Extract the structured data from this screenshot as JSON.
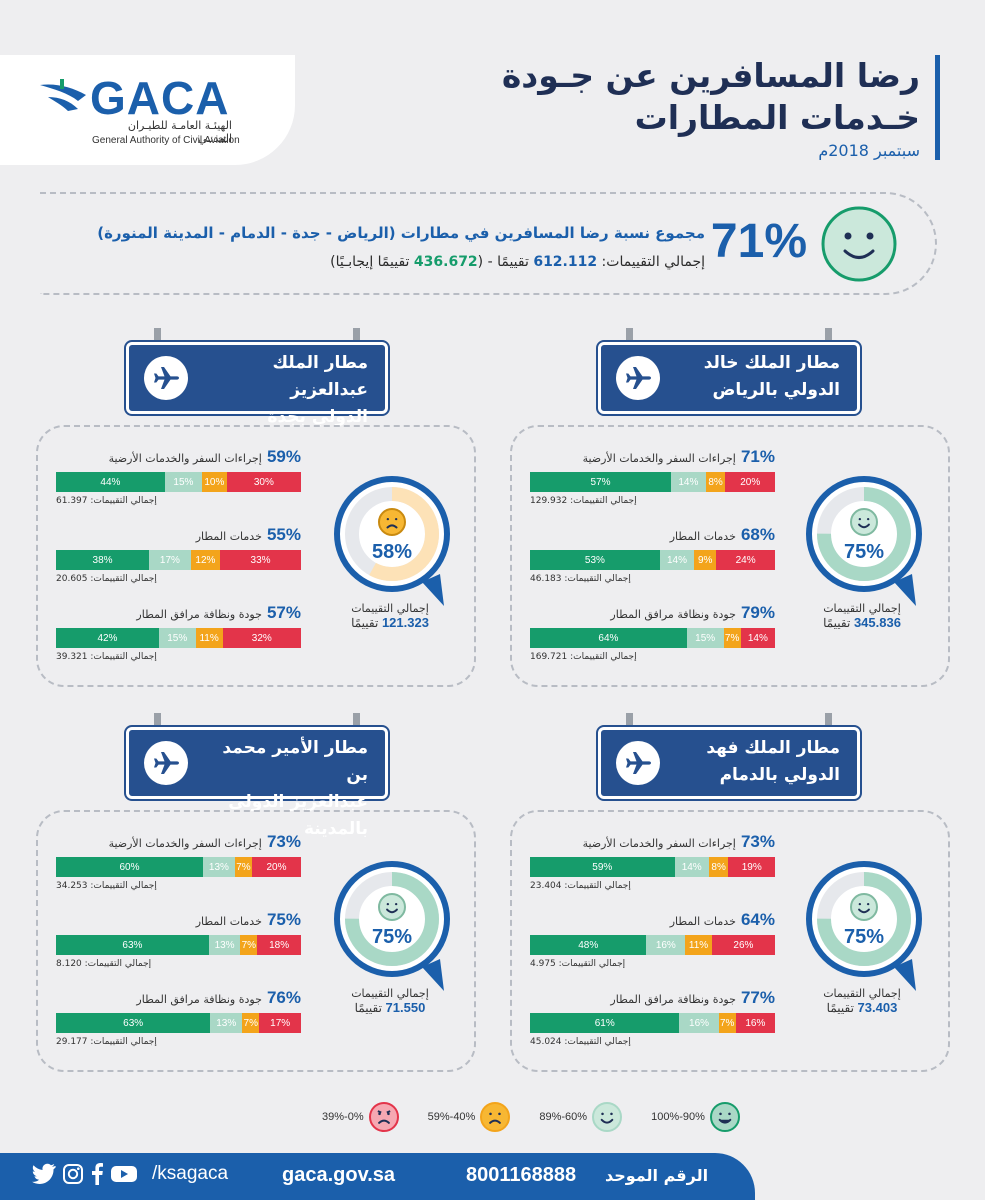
{
  "header": {
    "brand": "GACA",
    "brand_ar": "الهيئـة العامـة للطيـران المدنـي",
    "brand_en": "General Authority of Civil Aviation",
    "title_line1": "رضا المسافرين عن جـودة",
    "title_line2": "خـدمات المطارات",
    "date": "سبتمبر 2018م"
  },
  "summary": {
    "percent": "71%",
    "line1": "مجموع نسبة رضا المسافرين في مطارات (الرياض - جدة - الدمام - المدينة المنورة)",
    "line2_prefix": "إجمالي التقييمات: ",
    "total": "612.112",
    "mid": " تقييمًا - (",
    "positive": "436.672",
    "suffix": " تقييمًا إيجابـيًا)"
  },
  "airports": [
    {
      "name_line1": "مطار الملك خالد",
      "name_line2": "الدولي بالرياض",
      "score": "75%",
      "score_value": 75,
      "face": "happy",
      "ring_color": "#a9d8c6",
      "total_label": "إجمالي التقييمات",
      "total": "345.836",
      "total_unit": "تقييمًا",
      "metrics": [
        {
          "pct": "71%",
          "label": "إجراءات السفر والخدمات الأرضية",
          "count": "إجمالي التقييمات: 129.932",
          "segments": [
            57,
            14,
            8,
            20
          ],
          "seg_labels": [
            "57%",
            "14%",
            "8%",
            "20%"
          ]
        },
        {
          "pct": "68%",
          "label": "خدمات المطار",
          "count": "إجمالي التقييمات: 46.183",
          "segments": [
            53,
            14,
            9,
            24
          ],
          "seg_labels": [
            "53%",
            "14%",
            "9%",
            "24%"
          ]
        },
        {
          "pct": "79%",
          "label": "جودة ونظافة مرافق المطار",
          "count": "إجمالي التقييمات: 169.721",
          "segments": [
            64,
            15,
            7,
            14
          ],
          "seg_labels": [
            "64%",
            "15%",
            "7%",
            "14%"
          ]
        }
      ]
    },
    {
      "name_line1": "مطار الملك عبدالعزيز",
      "name_line2": "الدولي بجدة",
      "score": "58%",
      "score_value": 58,
      "face": "sad",
      "ring_color": "#fde2b7",
      "total_label": "إجمالي التقييمات",
      "total": "121.323",
      "total_unit": "تقييمًا",
      "metrics": [
        {
          "pct": "59%",
          "label": "إجراءات السفر والخدمات الأرضية",
          "count": "إجمالي التقييمات: 61.397",
          "segments": [
            44,
            15,
            10,
            30
          ],
          "seg_labels": [
            "44%",
            "15%",
            "10%",
            "30%"
          ]
        },
        {
          "pct": "55%",
          "label": "خدمات المطار",
          "count": "إجمالي التقييمات: 20.605",
          "segments": [
            38,
            17,
            12,
            33
          ],
          "seg_labels": [
            "38%",
            "17%",
            "12%",
            "33%"
          ]
        },
        {
          "pct": "57%",
          "label": "جودة ونظافة مرافق المطار",
          "count": "إجمالي التقييمات: 39.321",
          "segments": [
            42,
            15,
            11,
            32
          ],
          "seg_labels": [
            "42%",
            "15%",
            "11%",
            "32%"
          ]
        }
      ]
    },
    {
      "name_line1": "مطار الملك فهد",
      "name_line2": "الدولي بالدمام",
      "score": "75%",
      "score_value": 75,
      "face": "happy",
      "ring_color": "#a9d8c6",
      "total_label": "إجمالي التقييمات",
      "total": "73.403",
      "total_unit": "تقييمًا",
      "metrics": [
        {
          "pct": "73%",
          "label": "إجراءات السفر والخدمات الأرضية",
          "count": "إجمالي التقييمات: 23.404",
          "segments": [
            59,
            14,
            8,
            19
          ],
          "seg_labels": [
            "59%",
            "14%",
            "8%",
            "19%"
          ]
        },
        {
          "pct": "64%",
          "label": "خدمات المطار",
          "count": "إجمالي التقييمات: 4.975",
          "segments": [
            48,
            16,
            11,
            26
          ],
          "seg_labels": [
            "48%",
            "16%",
            "11%",
            "26%"
          ]
        },
        {
          "pct": "77%",
          "label": "جودة ونظافة مرافق المطار",
          "count": "إجمالي التقييمات: 45.024",
          "segments": [
            61,
            16,
            7,
            16
          ],
          "seg_labels": [
            "61%",
            "16%",
            "7%",
            "16%"
          ]
        }
      ]
    },
    {
      "name_line1": "مطار الأمير محمد بن",
      "name_line2": "عبدالعزيز الدولي بالمدينة",
      "score": "75%",
      "score_value": 75,
      "face": "happy",
      "ring_color": "#a9d8c6",
      "total_label": "إجمالي التقييمات",
      "total": "71.550",
      "total_unit": "تقييمًا",
      "metrics": [
        {
          "pct": "73%",
          "label": "إجراءات السفر والخدمات الأرضية",
          "count": "إجمالي التقييمات: 34.253",
          "segments": [
            60,
            13,
            7,
            20
          ],
          "seg_labels": [
            "60%",
            "13%",
            "7%",
            "20%"
          ]
        },
        {
          "pct": "75%",
          "label": "خدمات المطار",
          "count": "إجمالي التقييمات: 8.120",
          "segments": [
            63,
            13,
            7,
            18
          ],
          "seg_labels": [
            "63%",
            "13%",
            "7%",
            "18%"
          ]
        },
        {
          "pct": "76%",
          "label": "جودة ونظافة مرافق المطار",
          "count": "إجمالي التقييمات: 29.177",
          "segments": [
            63,
            13,
            7,
            17
          ],
          "seg_labels": [
            "63%",
            "13%",
            "7%",
            "17%"
          ]
        }
      ]
    }
  ],
  "legend": [
    {
      "label": "90%-100%",
      "face": "very-happy",
      "color": "#169c6b"
    },
    {
      "label": "60%-89%",
      "face": "happy",
      "color": "#a9d8c6"
    },
    {
      "label": "40%-59%",
      "face": "sad",
      "color": "#f3a41b"
    },
    {
      "label": "0%-39%",
      "face": "angry",
      "color": "#e3344a"
    }
  ],
  "footer": {
    "handle": "/ksagaca",
    "website": "gaca.gov.sa",
    "phone": "8001168888",
    "phone_label": "الرقم الموحد"
  },
  "colors": {
    "brand_blue": "#1b5fab",
    "green": "#169c6b",
    "light_green": "#a9d8c6",
    "orange": "#f3a41b",
    "red": "#e3344a",
    "sign_blue": "#26508f"
  }
}
